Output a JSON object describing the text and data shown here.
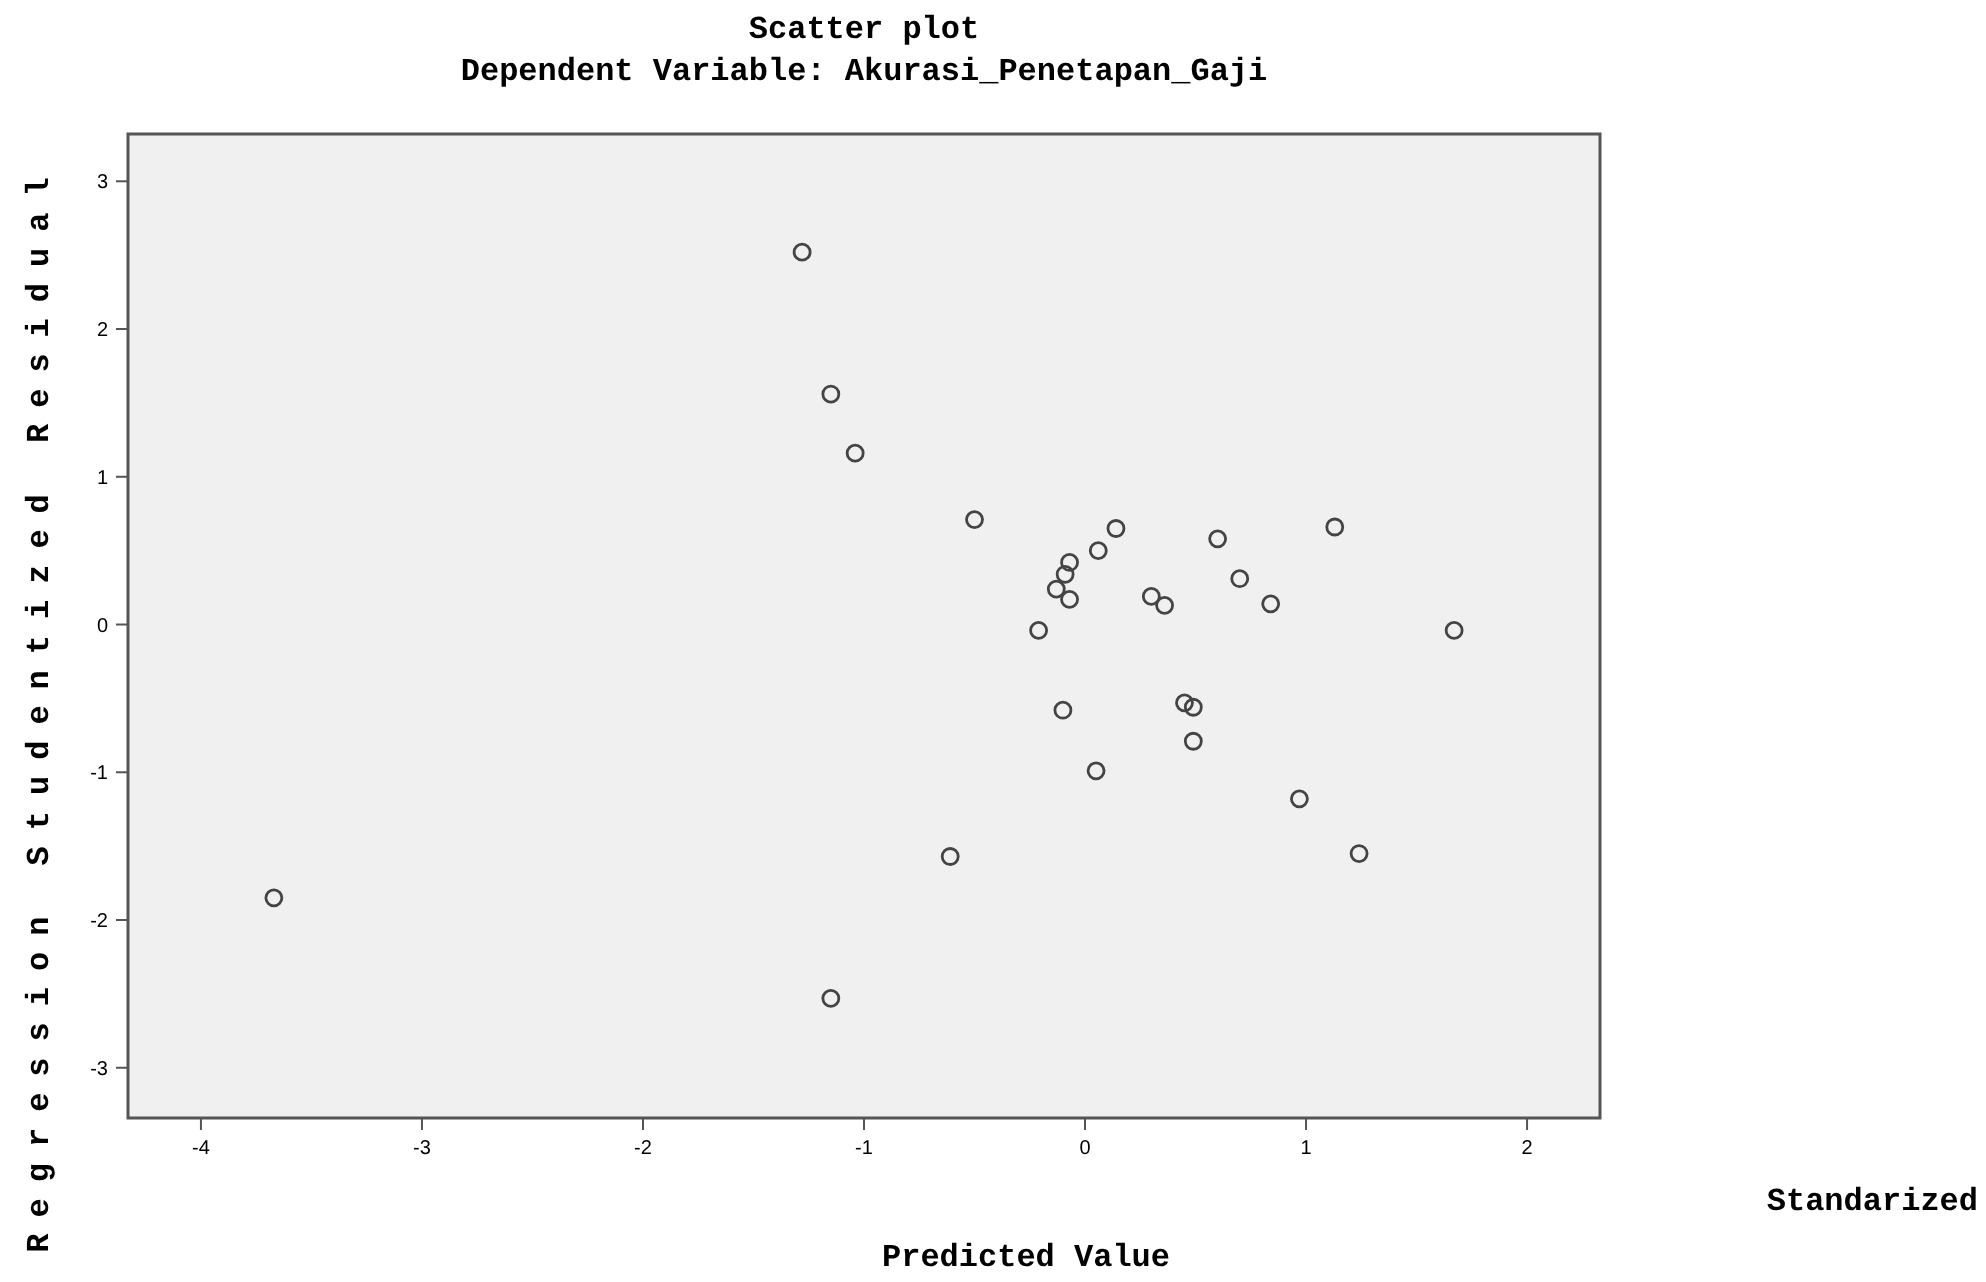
{
  "chart_data": {
    "type": "scatter",
    "title": "Scatter plot",
    "subtitle": "Dependent Variable: Akurasi_Penetapan_Gaji",
    "xlabel": "Predicted Value",
    "ylabel": "Regression Studentized Residual",
    "annotations": [
      "Standarized"
    ],
    "xlim": [
      -4.33,
      2.33
    ],
    "ylim": [
      -3.34,
      3.32
    ],
    "xticks": [
      -4,
      -3,
      -2,
      -1,
      0,
      1,
      2
    ],
    "yticks": [
      -3,
      -2,
      -1,
      0,
      1,
      2,
      3
    ],
    "grid": false,
    "marker": "circle",
    "series": [
      {
        "color": "#444444",
        "x": [
          -1.28,
          -1.15,
          -1.04,
          -0.5,
          -0.21,
          -0.61,
          -3.67,
          -1.15,
          -0.07,
          -0.09,
          -0.13,
          -0.07,
          0.06,
          0.14,
          0.6,
          1.13,
          0.7,
          0.3,
          0.36,
          0.84,
          1.67,
          -0.1,
          0.45,
          0.49,
          0.49,
          0.05,
          0.97,
          1.24
        ],
        "values": [
          2.52,
          1.56,
          1.16,
          0.71,
          -0.04,
          -1.57,
          -1.85,
          -2.53,
          0.42,
          0.34,
          0.24,
          0.17,
          0.5,
          0.65,
          0.58,
          0.66,
          0.31,
          0.19,
          0.13,
          0.14,
          -0.04,
          -0.58,
          -0.53,
          -0.56,
          -0.79,
          -0.99,
          -1.18,
          -1.55
        ]
      }
    ]
  }
}
